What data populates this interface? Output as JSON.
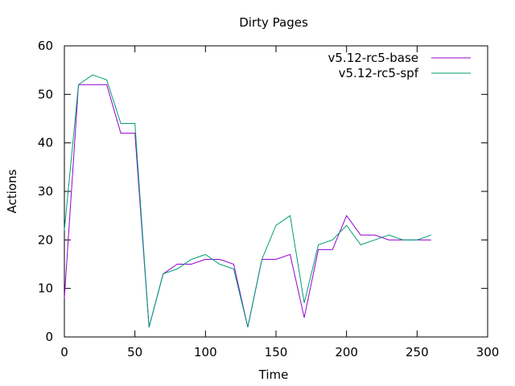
{
  "chart_data": {
    "type": "line",
    "title": "Dirty Pages",
    "xlabel": "Time",
    "ylabel": "Actions",
    "xlim": [
      0,
      300
    ],
    "ylim": [
      0,
      60
    ],
    "xticks": [
      0,
      50,
      100,
      150,
      200,
      250,
      300
    ],
    "yticks": [
      0,
      10,
      20,
      30,
      40,
      50,
      60
    ],
    "grid": false,
    "legend_position": "top-right",
    "x": [
      0,
      10,
      20,
      30,
      40,
      50,
      60,
      70,
      80,
      90,
      100,
      110,
      120,
      130,
      140,
      150,
      160,
      170,
      180,
      190,
      200,
      210,
      220,
      230,
      240,
      250,
      260
    ],
    "series": [
      {
        "name": "v5.12-rc5-base",
        "color": "#9400d3",
        "values": [
          8,
          52,
          52,
          52,
          42,
          42,
          2,
          13,
          15,
          15,
          16,
          16,
          15,
          2,
          16,
          16,
          17,
          4,
          18,
          18,
          25,
          21,
          21,
          20,
          20,
          20,
          20
        ]
      },
      {
        "name": "v5.12-rc5-spf",
        "color": "#009e73",
        "values": [
          22,
          52,
          54,
          53,
          44,
          44,
          2,
          13,
          14,
          16,
          17,
          15,
          14,
          2,
          16,
          23,
          25,
          7,
          19,
          20,
          23,
          19,
          20,
          21,
          20,
          20,
          21
        ]
      }
    ]
  }
}
